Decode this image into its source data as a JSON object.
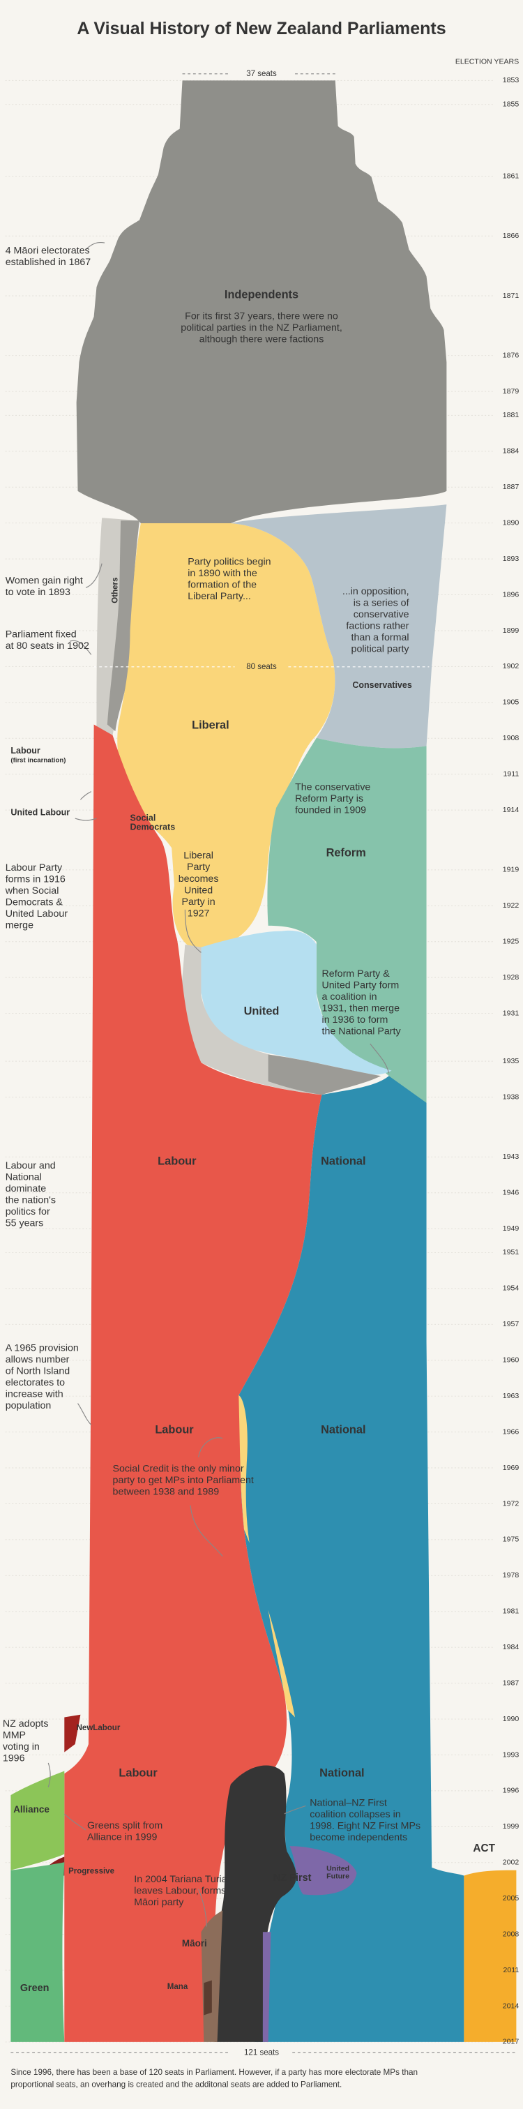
{
  "chart_data": {
    "type": "stream",
    "title": "A Visual History of New Zealand Parliaments",
    "axis_label": "ELECTION YEARS",
    "ylim": [
      1853,
      2017
    ],
    "yticks": [
      1853,
      1855,
      1861,
      1866,
      1871,
      1876,
      1879,
      1881,
      1884,
      1887,
      1890,
      1893,
      1896,
      1899,
      1902,
      1905,
      1908,
      1911,
      1914,
      1919,
      1922,
      1925,
      1928,
      1931,
      1935,
      1938,
      1943,
      1946,
      1949,
      1951,
      1954,
      1957,
      1960,
      1963,
      1966,
      1969,
      1972,
      1975,
      1978,
      1981,
      1984,
      1987,
      1990,
      1993,
      1996,
      1999,
      2002,
      2005,
      2008,
      2011,
      2014,
      2017
    ],
    "seat_labels": [
      "37 seats",
      "80 seats",
      "121 seats"
    ],
    "labels": [
      [
        "Independents"
      ],
      [
        "Others"
      ],
      [
        "Liberal"
      ],
      [
        "Conservatives"
      ],
      [
        "Labour",
        "(first incarnation)"
      ],
      [
        "United Labour"
      ],
      [
        "Social",
        "Democrats"
      ],
      [
        "Reform"
      ],
      [
        "United"
      ],
      [
        "Labour"
      ],
      [
        "National"
      ],
      [
        "NewLabour"
      ],
      [
        "Alliance"
      ],
      [
        "Progressive"
      ],
      [
        "NZ First"
      ],
      [
        "United",
        "Future"
      ],
      [
        "ACT"
      ],
      [
        "Māori"
      ],
      [
        "Mana"
      ],
      [
        "Green"
      ]
    ],
    "annotations": [
      [
        "4 Māori electorates",
        "established in 1867"
      ],
      [
        "For its first 37 years, there were no",
        "political parties in the NZ Parliament,",
        "although there were factions"
      ],
      [
        "Party politics begin",
        "in 1890 with the",
        "formation of the",
        "Liberal Party..."
      ],
      [
        "...in opposition,",
        "is a series of",
        "conservative",
        "factions rather",
        "than a formal",
        "political party"
      ],
      [
        "Women gain right",
        "to vote in 1893"
      ],
      [
        "Parliament fixed",
        "at 80 seats in 1902"
      ],
      [
        "The conservative",
        "Reform Party is",
        "founded in 1909"
      ],
      [
        "Labour Party",
        "forms in 1916",
        "when Social",
        "Democrats &",
        "United Labour",
        "merge"
      ],
      [
        "Liberal",
        "Party",
        "becomes",
        "United",
        "Party in",
        "1927"
      ],
      [
        "Reform Party &",
        "United Party form",
        "a coalition in",
        "1931, then merge",
        "in 1936 to form",
        "the National Party"
      ],
      [
        "Labour and",
        "National",
        "dominate",
        "the nation's",
        "politics for",
        "55 years"
      ],
      [
        "A 1965 provision",
        "allows number",
        "of North Island",
        "electorates to",
        "increase with",
        "population"
      ],
      [
        "Social Credit is the only minor",
        "party to get MPs into Parliament",
        "between 1938 and 1989"
      ],
      [
        "NZ adopts",
        "MMP",
        "voting in",
        "1996"
      ],
      [
        "Greens split from",
        "Alliance in 1999"
      ],
      [
        "National–NZ First",
        "coalition collapses in",
        "1998. Eight NZ First MPs",
        "become independents"
      ],
      [
        "In 2004 Tariana Turia",
        "leaves Labour, forms",
        "Māori party"
      ]
    ],
    "note": [
      "Since 1996, there has been a base of 120 seats in Parliament. However, if a party has more electorate MPs than",
      "proportional seats, an overhang is created and the additonal seats are added to Parliament."
    ]
  }
}
